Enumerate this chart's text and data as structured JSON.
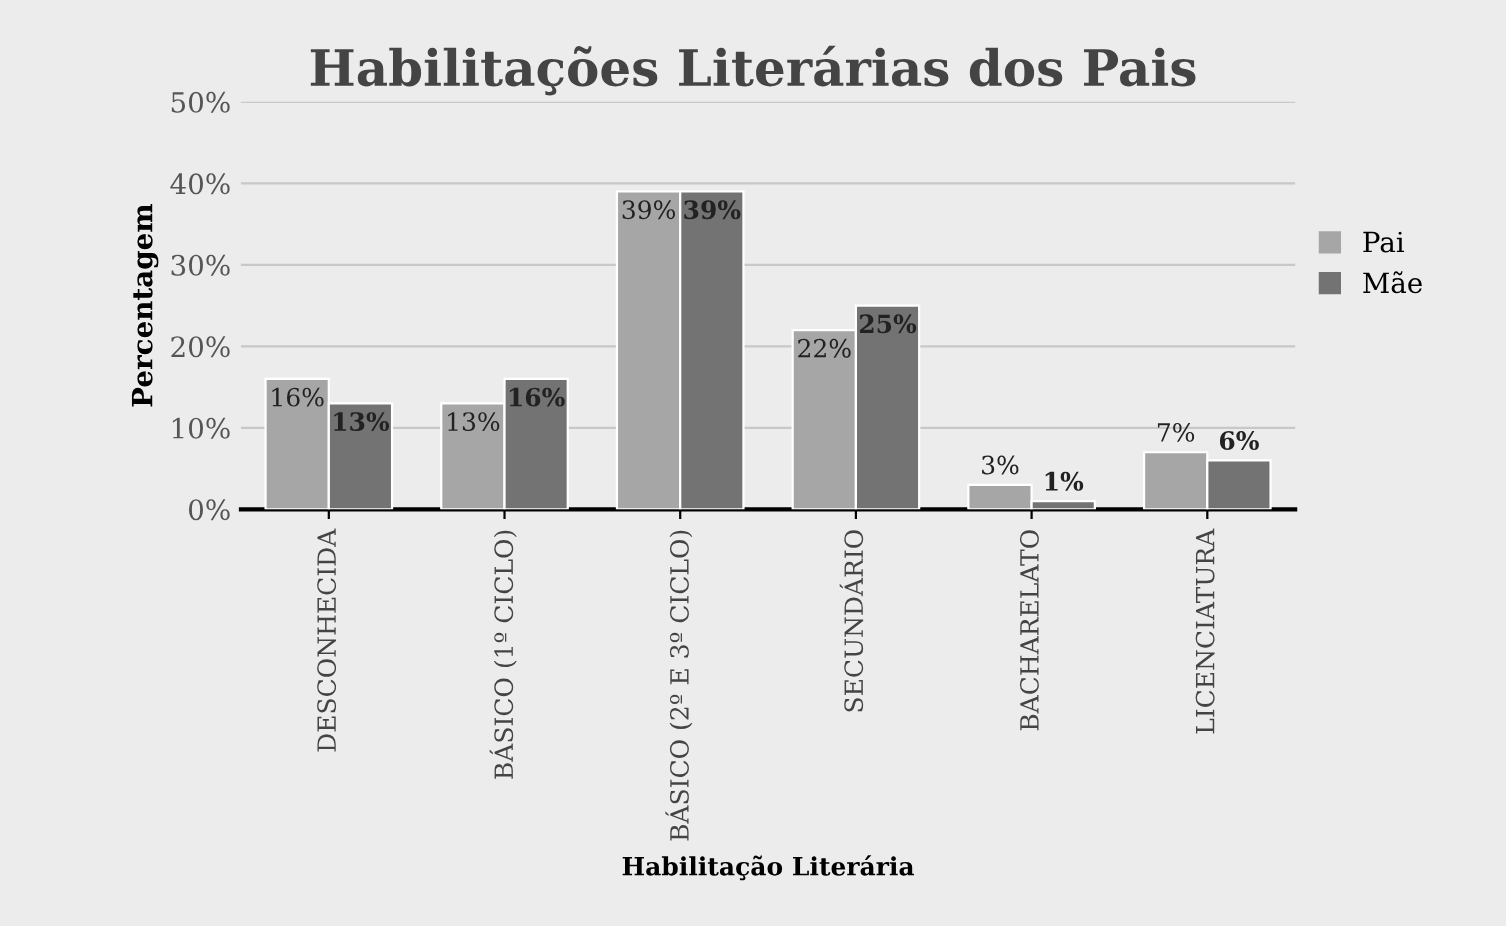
{
  "chart_data": {
    "type": "bar",
    "title": "Habilitações Literárias dos Pais",
    "xlabel": "Habilitação Literária",
    "ylabel": "Percentagem",
    "categories": [
      "DESCONHECIDA",
      "BÁSICO (1º CICLO)",
      "BÁSICO (2º E 3º CICLO)",
      "SECUNDÁRIO",
      "BACHARELATO",
      "LICENCIATURA"
    ],
    "series": [
      {
        "name": "Pai",
        "color": "#a6a6a6",
        "values": [
          16,
          13,
          39,
          22,
          3,
          7
        ],
        "value_labels": [
          "16%",
          "13%",
          "39%",
          "22%",
          "3%",
          "7%"
        ]
      },
      {
        "name": "Mãe",
        "color": "#737373",
        "values": [
          13,
          16,
          39,
          25,
          1,
          6
        ],
        "value_labels": [
          "13%",
          "16%",
          "39%",
          "25%",
          "1%",
          "6%"
        ]
      }
    ],
    "ylim": [
      0,
      50
    ],
    "yticks": [
      {
        "value": 0,
        "label": "0%"
      },
      {
        "value": 10,
        "label": "10%"
      },
      {
        "value": 20,
        "label": "20%"
      },
      {
        "value": 30,
        "label": "30%"
      },
      {
        "value": 40,
        "label": "40%"
      },
      {
        "value": 50,
        "label": "50%"
      }
    ],
    "grid": "y",
    "legend": "right"
  }
}
